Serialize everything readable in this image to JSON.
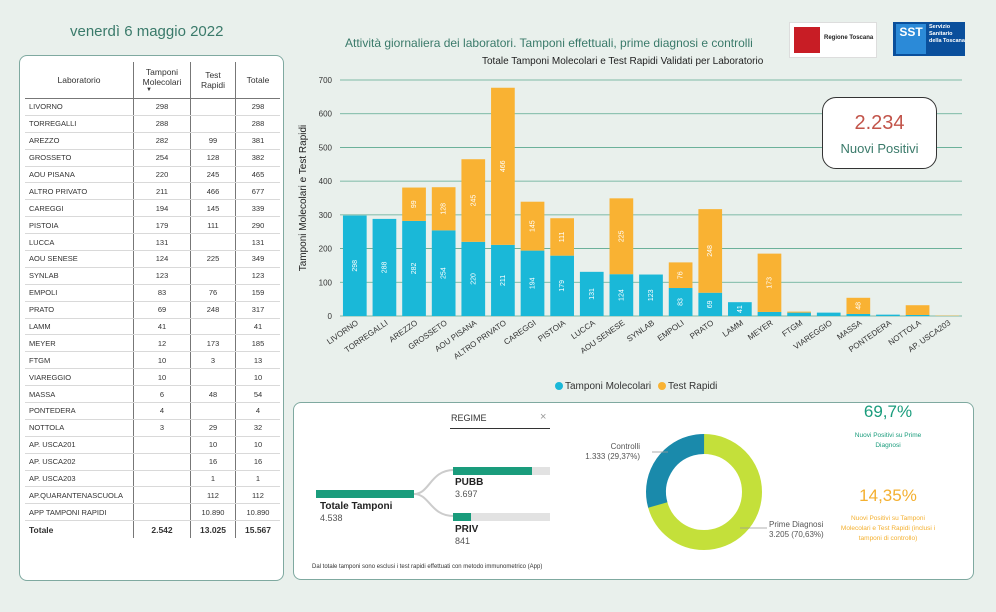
{
  "header": {
    "date": "venerdì 6 maggio 2022",
    "page_title": "Attività giornaliera dei laboratori. Tamponi effettuali, prime diagnosi e controlli",
    "logo1_text": "Regione Toscana",
    "logo2_text": "SST",
    "logo2_sub": "Servizio Sanitario della Toscana"
  },
  "table": {
    "headers": [
      "Laboratorio",
      "Tamponi Molecolari",
      "Test Rapidi",
      "Totale"
    ],
    "rows": [
      [
        "LIVORNO",
        "298",
        "",
        "298"
      ],
      [
        "TORREGALLI",
        "288",
        "",
        "288"
      ],
      [
        "AREZZO",
        "282",
        "99",
        "381"
      ],
      [
        "GROSSETO",
        "254",
        "128",
        "382"
      ],
      [
        "AOU PISANA",
        "220",
        "245",
        "465"
      ],
      [
        "ALTRO PRIVATO",
        "211",
        "466",
        "677"
      ],
      [
        "CAREGGI",
        "194",
        "145",
        "339"
      ],
      [
        "PISTOIA",
        "179",
        "111",
        "290"
      ],
      [
        "LUCCA",
        "131",
        "",
        "131"
      ],
      [
        "AOU SENESE",
        "124",
        "225",
        "349"
      ],
      [
        "SYNLAB",
        "123",
        "",
        "123"
      ],
      [
        "EMPOLI",
        "83",
        "76",
        "159"
      ],
      [
        "PRATO",
        "69",
        "248",
        "317"
      ],
      [
        "LAMM",
        "41",
        "",
        "41"
      ],
      [
        "MEYER",
        "12",
        "173",
        "185"
      ],
      [
        "FTGM",
        "10",
        "3",
        "13"
      ],
      [
        "VIAREGGIO",
        "10",
        "",
        "10"
      ],
      [
        "MASSA",
        "6",
        "48",
        "54"
      ],
      [
        "PONTEDERA",
        "4",
        "",
        "4"
      ],
      [
        "NOTTOLA",
        "3",
        "29",
        "32"
      ],
      [
        "AP. USCA201",
        "",
        "10",
        "10"
      ],
      [
        "AP. USCA202",
        "",
        "16",
        "16"
      ],
      [
        "AP. USCA203",
        "",
        "1",
        "1"
      ],
      [
        "AP.QUARANTENASCUOLA",
        "",
        "112",
        "112"
      ],
      [
        "APP TAMPONI RAPIDI",
        "",
        "10.890",
        "10.890"
      ]
    ],
    "total": [
      "Totale",
      "2.542",
      "13.025",
      "15.567"
    ]
  },
  "nuovi_positivi": {
    "value": "2.234",
    "label": "Nuovi Positivi"
  },
  "chart_data": {
    "type": "bar",
    "title": "Totale Tamponi Molecolari e Test Rapidi Validati per Laboratorio",
    "ylabel": "Tamponi Molecolari e Test Rapidi",
    "ylim": [
      0,
      700
    ],
    "yticks": [
      0,
      100,
      200,
      300,
      400,
      500,
      600,
      700
    ],
    "stacked": true,
    "categories": [
      "LIVORNO",
      "TORREGALLI",
      "AREZZO",
      "GROSSETO",
      "AOU PISANA",
      "ALTRO PRIVATO",
      "CAREGGI",
      "PISTOIA",
      "LUCCA",
      "AOU SENESE",
      "SYNLAB",
      "EMPOLI",
      "PRATO",
      "LAMM",
      "MEYER",
      "FTGM",
      "VIAREGGIO",
      "MASSA",
      "PONTEDERA",
      "NOTTOLA",
      "AP. USCA203"
    ],
    "series": [
      {
        "name": "Tamponi Molecolari",
        "color": "#1ab8d8",
        "values": [
          298,
          288,
          282,
          254,
          220,
          211,
          194,
          179,
          131,
          124,
          123,
          83,
          69,
          41,
          12,
          10,
          10,
          6,
          4,
          3,
          0
        ]
      },
      {
        "name": "Test Rapidi",
        "color": "#f9b233",
        "values": [
          0,
          0,
          99,
          128,
          245,
          466,
          145,
          111,
          0,
          225,
          0,
          76,
          248,
          0,
          173,
          3,
          0,
          48,
          0,
          29,
          1
        ]
      }
    ],
    "legend": "bottom",
    "grid": true
  },
  "regime": {
    "filter_label": "REGIME",
    "total_label": "Totale Tamponi",
    "total_value": "4.538",
    "pubb_label": "PUBB",
    "pubb_value": "3.697",
    "pubb_fraction": 0.815,
    "priv_label": "PRIV",
    "priv_value": "841",
    "priv_fraction": 0.185,
    "footnote": "Dal totale tamponi sono esclusi i test rapidi effettuati con metodo immunometrico (App)"
  },
  "donut": {
    "controlli_label": "Controlli",
    "controlli_value": "1.333 (29,37%)",
    "controlli_fraction": 0.2937,
    "controlli_color": "#1a8aab",
    "prime_label": "Prime Diagnosi",
    "prime_value": "3.205 (70,63%)",
    "prime_fraction": 0.7063,
    "prime_color": "#c4e03a"
  },
  "kpis": {
    "pct1": "69,7%",
    "pct1_label": "Nuovi Positivi su Prime Diagnosi",
    "pct2": "14,35%",
    "pct2_label": "Nuovi Positivi su Tamponi Molecolari e Test Rapidi (inclusi i tamponi di controllo)"
  }
}
